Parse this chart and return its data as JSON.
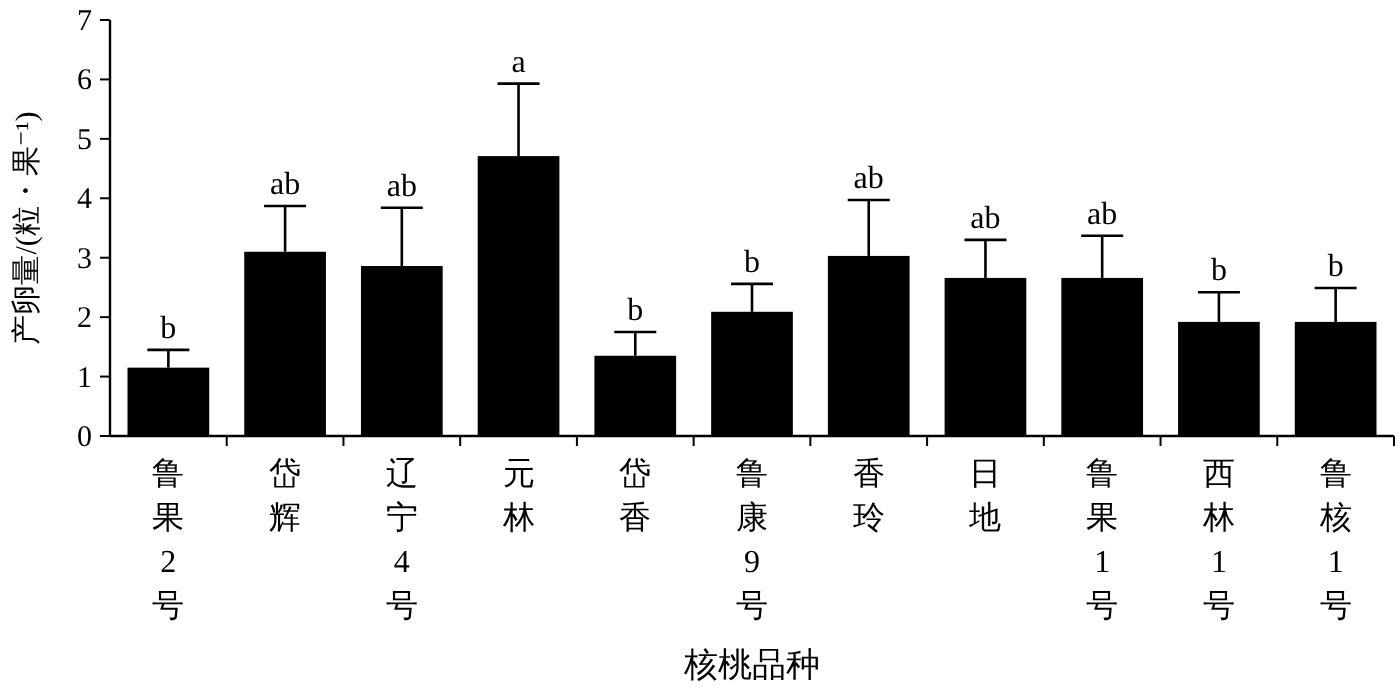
{
  "chart_data": {
    "type": "bar",
    "xlabel": "核桃品种",
    "ylabel": "产卵量/(粒・果⁻¹)",
    "categories": [
      "鲁果2号",
      "岱辉",
      "辽宁4号",
      "元林",
      "岱香",
      "鲁康9号",
      "香玲",
      "日地",
      "鲁果1号",
      "西林1号",
      "鲁核1号"
    ],
    "values": [
      1.15,
      3.1,
      2.86,
      4.71,
      1.35,
      2.09,
      3.03,
      2.66,
      2.66,
      1.92,
      1.92
    ],
    "errors": [
      [
        1.15,
        1.45
      ],
      [
        3.1,
        3.87
      ],
      [
        2.86,
        3.84
      ],
      [
        4.71,
        5.93
      ],
      [
        1.35,
        1.75
      ],
      [
        2.09,
        2.56
      ],
      [
        3.03,
        3.97
      ],
      [
        2.66,
        3.3
      ],
      [
        2.66,
        3.37
      ],
      [
        1.92,
        2.42
      ],
      [
        1.92,
        2.49
      ]
    ],
    "color": "#000000",
    "ylim": [
      0,
      7
    ],
    "yticks": [
      0,
      1,
      2,
      3,
      4,
      5,
      6,
      7
    ],
    "annotations": [
      {
        "text": "b",
        "x": "鲁果2号",
        "y": 1.45
      },
      {
        "text": "ab",
        "x": "岱辉",
        "y": 3.87
      },
      {
        "text": "ab",
        "x": "辽宁4号",
        "y": 3.84
      },
      {
        "text": "a",
        "x": "元林",
        "y": 5.93
      },
      {
        "text": "b",
        "x": "岱香",
        "y": 1.75
      },
      {
        "text": "b",
        "x": "鲁康9号",
        "y": 2.56
      },
      {
        "text": "ab",
        "x": "香玲",
        "y": 3.97
      },
      {
        "text": "ab",
        "x": "日地",
        "y": 3.3
      },
      {
        "text": "ab",
        "x": "鲁果1号",
        "y": 3.37
      },
      {
        "text": "b",
        "x": "西林1号",
        "y": 2.42
      },
      {
        "text": "b",
        "x": "鲁核1号",
        "y": 2.49
      }
    ]
  }
}
